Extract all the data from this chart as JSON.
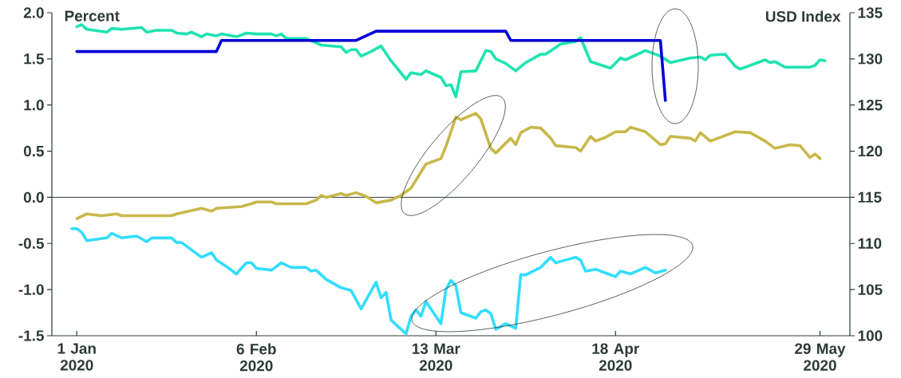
{
  "chart_data": {
    "type": "line",
    "ylabel": "Percent",
    "y2label": "USD Index",
    "xlim": [
      "2019-12-27",
      "2020-06-04"
    ],
    "xticks": [
      {
        "value": "2020-01-01",
        "label": "1 Jan 2020"
      },
      {
        "value": "2020-02-06",
        "label": "6 Feb 2020"
      },
      {
        "value": "2020-03-13",
        "label": "13 Mar 2020"
      },
      {
        "value": "2020-04-18",
        "label": "18 Apr 2020"
      },
      {
        "value": "2020-05-29",
        "label": "29 May 2020"
      }
    ],
    "ylim": [
      -1.5,
      2.0
    ],
    "yticks": [
      {
        "value": -1.5,
        "label": "-1.5"
      },
      {
        "value": -1.0,
        "label": "-1.0"
      },
      {
        "value": -0.5,
        "label": "-0.5"
      },
      {
        "value": 0.0,
        "label": "0.0"
      },
      {
        "value": 0.5,
        "label": "0.5"
      },
      {
        "value": 1.0,
        "label": "1.0"
      },
      {
        "value": 1.5,
        "label": "1.5"
      },
      {
        "value": 2.0,
        "label": "2.0"
      }
    ],
    "y2lim": [
      100,
      135
    ],
    "y2ticks": [
      100,
      105,
      110,
      115,
      120,
      125,
      130,
      135
    ],
    "ref_lines": [
      {
        "axis": "y",
        "value": 0
      }
    ],
    "series": [
      {
        "color": "#1ee3b0",
        "x": [
          "2020-01-01",
          "2020-01-02",
          "2020-01-03",
          "2020-01-07",
          "2020-01-08",
          "2020-01-10",
          "2020-01-14",
          "2020-01-15",
          "2020-01-17",
          "2020-01-20",
          "2020-01-21",
          "2020-01-23",
          "2020-01-24",
          "2020-01-26",
          "2020-01-27",
          "2020-01-29",
          "2020-01-30",
          "2020-02-02",
          "2020-02-04",
          "2020-02-06",
          "2020-02-09",
          "2020-02-10",
          "2020-02-11",
          "2020-02-12",
          "2020-02-16",
          "2020-02-19",
          "2020-02-23",
          "2020-02-24",
          "2020-02-25",
          "2020-02-26",
          "2020-02-27",
          "2020-02-29",
          "2020-03-02",
          "2020-03-04",
          "2020-03-07",
          "2020-03-08",
          "2020-03-10",
          "2020-03-11",
          "2020-03-14",
          "2020-03-15",
          "2020-03-16",
          "2020-03-17",
          "2020-03-18",
          "2020-03-21",
          "2020-03-23",
          "2020-03-24",
          "2020-03-25",
          "2020-03-27",
          "2020-03-29",
          "2020-03-31",
          "2020-04-03",
          "2020-04-04",
          "2020-04-07",
          "2020-04-10",
          "2020-04-11",
          "2020-04-13",
          "2020-04-17",
          "2020-04-19",
          "2020-04-20",
          "2020-04-22",
          "2020-04-24",
          "2020-04-27",
          "2020-04-29",
          "2020-05-03",
          "2020-05-05",
          "2020-05-06",
          "2020-05-07",
          "2020-05-10",
          "2020-05-12",
          "2020-05-13",
          "2020-05-18",
          "2020-05-19",
          "2020-05-20",
          "2020-05-22",
          "2020-05-27",
          "2020-05-28",
          "2020-05-29",
          "2020-05-30"
        ],
        "values": [
          1.85,
          1.87,
          1.82,
          1.79,
          1.83,
          1.82,
          1.84,
          1.79,
          1.81,
          1.81,
          1.78,
          1.77,
          1.79,
          1.74,
          1.77,
          1.75,
          1.77,
          1.74,
          1.78,
          1.77,
          1.77,
          1.75,
          1.77,
          1.72,
          1.72,
          1.65,
          1.63,
          1.57,
          1.6,
          1.6,
          1.53,
          1.58,
          1.64,
          1.48,
          1.28,
          1.35,
          1.33,
          1.37,
          1.3,
          1.21,
          1.22,
          1.09,
          1.36,
          1.37,
          1.59,
          1.58,
          1.5,
          1.45,
          1.37,
          1.46,
          1.55,
          1.55,
          1.66,
          1.69,
          1.73,
          1.47,
          1.4,
          1.51,
          1.49,
          1.54,
          1.59,
          1.53,
          1.46,
          1.51,
          1.52,
          1.49,
          1.54,
          1.55,
          1.42,
          1.39,
          1.49,
          1.46,
          1.47,
          1.41,
          1.41,
          1.43,
          1.49,
          1.48
        ]
      },
      {
        "color": "#0000d8",
        "x": [
          "2020-01-01",
          "2020-01-29",
          "2020-01-30",
          "2020-02-26",
          "2020-03-01",
          "2020-03-27",
          "2020-03-28",
          "2020-04-27",
          "2020-04-28"
        ],
        "values": [
          1.58,
          1.58,
          1.7,
          1.7,
          1.8,
          1.8,
          1.7,
          1.7,
          1.05
        ]
      },
      {
        "color": "#c8b84a",
        "axis": "y2",
        "x": [
          "2020-01-01",
          "2020-01-03",
          "2020-01-06",
          "2020-01-09",
          "2020-01-10",
          "2020-01-20",
          "2020-01-21",
          "2020-01-26",
          "2020-01-28",
          "2020-01-29",
          "2020-02-03",
          "2020-02-05",
          "2020-02-06",
          "2020-02-09",
          "2020-02-10",
          "2020-02-16",
          "2020-02-18",
          "2020-02-19",
          "2020-02-20",
          "2020-02-23",
          "2020-02-24",
          "2020-02-26",
          "2020-02-28",
          "2020-03-01",
          "2020-03-04",
          "2020-03-06",
          "2020-03-08",
          "2020-03-11",
          "2020-03-14",
          "2020-03-15",
          "2020-03-17",
          "2020-03-18",
          "2020-03-21",
          "2020-03-22",
          "2020-03-24",
          "2020-03-25",
          "2020-03-28",
          "2020-03-29",
          "2020-03-30",
          "2020-04-01",
          "2020-04-03",
          "2020-04-05",
          "2020-04-06",
          "2020-04-10",
          "2020-04-11",
          "2020-04-13",
          "2020-04-14",
          "2020-04-16",
          "2020-04-18",
          "2020-04-20",
          "2020-04-21",
          "2020-04-24",
          "2020-04-27",
          "2020-04-28",
          "2020-04-29",
          "2020-05-03",
          "2020-05-04",
          "2020-05-05",
          "2020-05-07",
          "2020-05-12",
          "2020-05-15",
          "2020-05-18",
          "2020-05-20",
          "2020-05-23",
          "2020-05-25",
          "2020-05-27",
          "2020-05-28",
          "2020-05-29"
        ],
        "values": [
          112.7,
          113.2,
          113.0,
          113.2,
          113.0,
          113.0,
          113.2,
          113.8,
          113.5,
          113.8,
          114.0,
          114.3,
          114.5,
          114.5,
          114.3,
          114.3,
          114.7,
          115.2,
          115.0,
          115.4,
          115.2,
          115.5,
          115.1,
          114.4,
          114.7,
          115.2,
          116.0,
          118.6,
          119.2,
          120.5,
          123.7,
          123.4,
          124.1,
          123.5,
          120.3,
          119.8,
          121.4,
          120.7,
          122.0,
          122.6,
          122.5,
          121.4,
          120.6,
          120.4,
          120.0,
          121.6,
          121.1,
          121.5,
          122.1,
          122.1,
          122.6,
          122.1,
          120.7,
          120.8,
          121.6,
          121.4,
          121.1,
          122.0,
          121.1,
          122.1,
          122.0,
          121.1,
          120.3,
          120.7,
          120.6,
          119.3,
          119.7,
          119.2
        ]
      },
      {
        "color": "#33ddff",
        "x": [
          "2019-12-31",
          "2020-01-01",
          "2020-01-02",
          "2020-01-03",
          "2020-01-07",
          "2020-01-08",
          "2020-01-10",
          "2020-01-13",
          "2020-01-15",
          "2020-01-16",
          "2020-01-20",
          "2020-01-21",
          "2020-01-22",
          "2020-01-24",
          "2020-01-26",
          "2020-01-28",
          "2020-01-29",
          "2020-01-31",
          "2020-02-02",
          "2020-02-04",
          "2020-02-05",
          "2020-02-06",
          "2020-02-09",
          "2020-02-11",
          "2020-02-13",
          "2020-02-16",
          "2020-02-17",
          "2020-02-18",
          "2020-02-20",
          "2020-02-23",
          "2020-02-25",
          "2020-02-27",
          "2020-03-01",
          "2020-03-02",
          "2020-03-03",
          "2020-03-04",
          "2020-03-07",
          "2020-03-08",
          "2020-03-09",
          "2020-03-10",
          "2020-03-11",
          "2020-03-14",
          "2020-03-15",
          "2020-03-16",
          "2020-03-17",
          "2020-03-18",
          "2020-03-21",
          "2020-03-22",
          "2020-03-23",
          "2020-03-24",
          "2020-03-25",
          "2020-03-27",
          "2020-03-29",
          "2020-03-30",
          "2020-03-31",
          "2020-04-03",
          "2020-04-05",
          "2020-04-06",
          "2020-04-10",
          "2020-04-11",
          "2020-04-12",
          "2020-04-14",
          "2020-04-18",
          "2020-04-19",
          "2020-04-21",
          "2020-04-24",
          "2020-04-26",
          "2020-04-28"
        ],
        "values": [
          -0.34,
          -0.34,
          -0.38,
          -0.47,
          -0.44,
          -0.39,
          -0.44,
          -0.42,
          -0.48,
          -0.44,
          -0.44,
          -0.49,
          -0.49,
          -0.57,
          -0.65,
          -0.6,
          -0.68,
          -0.75,
          -0.83,
          -0.71,
          -0.71,
          -0.77,
          -0.79,
          -0.71,
          -0.76,
          -0.76,
          -0.8,
          -0.79,
          -0.89,
          -0.98,
          -1.01,
          -1.21,
          -0.92,
          -1.09,
          -1.03,
          -1.33,
          -1.48,
          -1.29,
          -1.22,
          -1.29,
          -1.13,
          -1.37,
          -1.0,
          -0.9,
          -0.96,
          -1.25,
          -1.31,
          -1.24,
          -1.22,
          -1.26,
          -1.43,
          -1.37,
          -1.42,
          -0.84,
          -0.84,
          -0.76,
          -0.65,
          -0.71,
          -0.65,
          -0.68,
          -0.8,
          -0.78,
          -0.86,
          -0.8,
          -0.83,
          -0.76,
          -0.82,
          -0.79
        ]
      }
    ]
  }
}
